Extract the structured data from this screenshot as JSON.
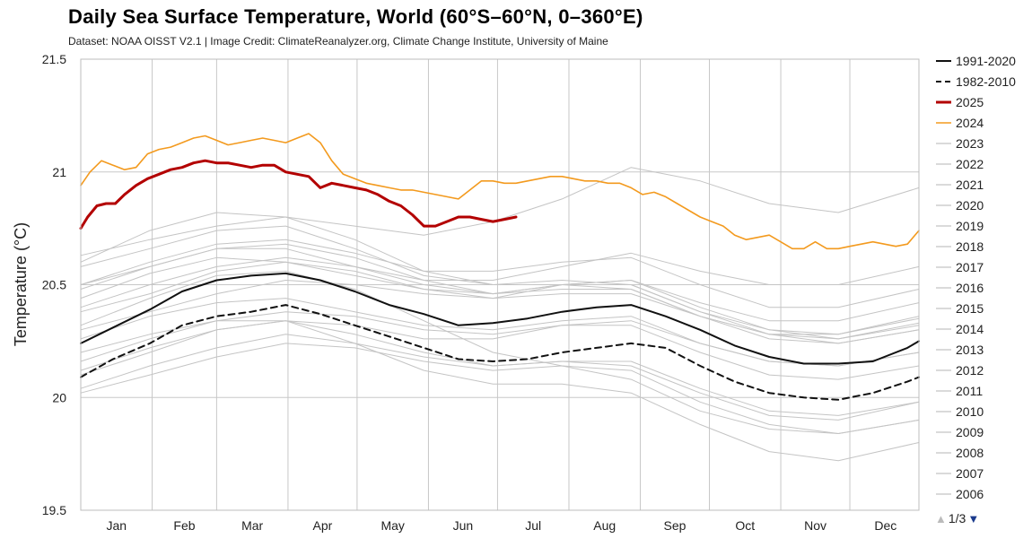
{
  "header": {
    "title": "Daily Sea Surface Temperature, World (60°S–60°N, 0–360°E)",
    "subtitle": "Dataset: NOAA OISST V2.1 | Image Credit: ClimateReanalyzer.org, Climate Change Institute, University of Maine"
  },
  "pager": {
    "text": "1/3",
    "up_icon": "triangle-up-icon",
    "down_icon": "triangle-down-icon"
  },
  "colors": {
    "y1991_2020": "#111111",
    "y1982_2010": "#111111",
    "y2025": "#b30000",
    "y2024": "#f39a1e",
    "past_years": "#c4c4c4",
    "grid": "#c8c8c8"
  },
  "chart_data": {
    "type": "line",
    "ylabel": "Temperature (°C)",
    "ylim": [
      19.5,
      21.5
    ],
    "yticks": [
      "21.5",
      "21",
      "20.5",
      "20",
      "19.5"
    ],
    "xlim": [
      1,
      365
    ],
    "x_unit": "day of year",
    "month_labels": [
      "Jan",
      "Feb",
      "Mar",
      "Apr",
      "May",
      "Jun",
      "Jul",
      "Aug",
      "Sep",
      "Oct",
      "Nov",
      "Dec"
    ],
    "grid": true,
    "legend_position": "right",
    "legend": [
      "1991-2020",
      "1982-2010",
      "2025",
      "2024",
      "2023",
      "2022",
      "2021",
      "2020",
      "2019",
      "2018",
      "2017",
      "2016",
      "2015",
      "2014",
      "2013",
      "2012",
      "2011",
      "2010",
      "2009",
      "2008",
      "2007",
      "2006"
    ],
    "series": [
      {
        "name": "1991-2020",
        "style": "solid",
        "color": "#111111",
        "x": [
          1,
          15,
          31,
          45,
          60,
          75,
          90,
          105,
          120,
          135,
          150,
          165,
          180,
          195,
          210,
          225,
          240,
          255,
          270,
          285,
          300,
          315,
          330,
          345,
          360,
          365
        ],
        "y": [
          20.24,
          20.31,
          20.39,
          20.47,
          20.52,
          20.54,
          20.55,
          20.52,
          20.47,
          20.41,
          20.37,
          20.32,
          20.33,
          20.35,
          20.38,
          20.4,
          20.41,
          20.36,
          20.3,
          20.23,
          20.18,
          20.15,
          20.15,
          20.16,
          20.22,
          20.25
        ]
      },
      {
        "name": "1982-2010",
        "style": "dashed",
        "color": "#111111",
        "x": [
          1,
          15,
          31,
          45,
          60,
          75,
          90,
          105,
          120,
          135,
          150,
          165,
          180,
          195,
          210,
          225,
          240,
          255,
          270,
          285,
          300,
          315,
          330,
          345,
          360,
          365
        ],
        "y": [
          20.09,
          20.17,
          20.24,
          20.32,
          20.36,
          20.38,
          20.41,
          20.37,
          20.32,
          20.27,
          20.22,
          20.17,
          20.16,
          20.17,
          20.2,
          20.22,
          20.24,
          20.22,
          20.14,
          20.07,
          20.02,
          20.0,
          19.99,
          20.02,
          20.07,
          20.09
        ]
      },
      {
        "name": "2025",
        "style": "solid",
        "color": "#b30000",
        "x": [
          1,
          4,
          8,
          12,
          16,
          20,
          25,
          30,
          35,
          40,
          45,
          50,
          55,
          60,
          65,
          70,
          75,
          80,
          85,
          90,
          95,
          100,
          105,
          110,
          115,
          120,
          125,
          130,
          135,
          140,
          145,
          150,
          155,
          160,
          165,
          170,
          175,
          180,
          185,
          190
        ],
        "y": [
          20.75,
          20.8,
          20.85,
          20.86,
          20.86,
          20.9,
          20.94,
          20.97,
          20.99,
          21.01,
          21.02,
          21.04,
          21.05,
          21.04,
          21.04,
          21.03,
          21.02,
          21.03,
          21.03,
          21.0,
          20.99,
          20.98,
          20.93,
          20.95,
          20.94,
          20.93,
          20.92,
          20.9,
          20.87,
          20.85,
          20.81,
          20.76,
          20.76,
          20.78,
          20.8,
          20.8,
          20.79,
          20.78,
          20.79,
          20.8
        ]
      },
      {
        "name": "2024",
        "style": "solid",
        "color": "#f39a1e",
        "x": [
          1,
          5,
          10,
          15,
          20,
          25,
          30,
          35,
          40,
          45,
          50,
          55,
          60,
          65,
          70,
          75,
          80,
          85,
          90,
          95,
          100,
          105,
          110,
          115,
          120,
          125,
          130,
          135,
          140,
          145,
          150,
          155,
          160,
          165,
          170,
          175,
          180,
          185,
          190,
          195,
          200,
          205,
          210,
          215,
          220,
          225,
          230,
          235,
          240,
          245,
          250,
          255,
          260,
          265,
          270,
          275,
          280,
          285,
          290,
          295,
          300,
          305,
          310,
          315,
          320,
          325,
          330,
          335,
          340,
          345,
          350,
          355,
          360,
          365
        ],
        "y": [
          20.94,
          21.0,
          21.05,
          21.03,
          21.01,
          21.02,
          21.08,
          21.1,
          21.11,
          21.13,
          21.15,
          21.16,
          21.14,
          21.12,
          21.13,
          21.14,
          21.15,
          21.14,
          21.13,
          21.15,
          21.17,
          21.13,
          21.05,
          20.99,
          20.97,
          20.95,
          20.94,
          20.93,
          20.92,
          20.92,
          20.91,
          20.9,
          20.89,
          20.88,
          20.92,
          20.96,
          20.96,
          20.95,
          20.95,
          20.96,
          20.97,
          20.98,
          20.98,
          20.97,
          20.96,
          20.96,
          20.95,
          20.95,
          20.93,
          20.9,
          20.91,
          20.89,
          20.86,
          20.83,
          20.8,
          20.78,
          20.76,
          20.72,
          20.7,
          20.71,
          20.72,
          20.69,
          20.66,
          20.66,
          20.69,
          20.66,
          20.66,
          20.67,
          20.68,
          20.69,
          20.68,
          20.67,
          20.68,
          20.74
        ]
      },
      {
        "name": "2023",
        "style": "solid",
        "color": "#c4c4c4",
        "x": [
          1,
          31,
          60,
          90,
          120,
          150,
          180,
          210,
          240,
          270,
          300,
          330,
          365
        ],
        "y": [
          20.63,
          20.7,
          20.76,
          20.8,
          20.76,
          20.72,
          20.78,
          20.88,
          21.02,
          20.96,
          20.86,
          20.82,
          20.93
        ]
      },
      {
        "name": "2022",
        "style": "solid",
        "color": "#c4c4c4",
        "x": [
          1,
          31,
          60,
          90,
          120,
          150,
          180,
          210,
          240,
          270,
          300,
          330,
          365
        ],
        "y": [
          20.5,
          20.58,
          20.66,
          20.66,
          20.58,
          20.5,
          20.46,
          20.5,
          20.52,
          20.4,
          20.3,
          20.28,
          20.35
        ]
      },
      {
        "name": "2021",
        "style": "solid",
        "color": "#c4c4c4",
        "x": [
          1,
          31,
          60,
          90,
          120,
          150,
          180,
          210,
          240,
          270,
          300,
          330,
          365
        ],
        "y": [
          20.44,
          20.55,
          20.62,
          20.6,
          20.54,
          20.48,
          20.46,
          20.5,
          20.5,
          20.38,
          20.28,
          20.26,
          20.32
        ]
      },
      {
        "name": "2020",
        "style": "solid",
        "color": "#c4c4c4",
        "x": [
          1,
          31,
          60,
          90,
          120,
          150,
          180,
          210,
          240,
          270,
          300,
          330,
          365
        ],
        "y": [
          20.58,
          20.66,
          20.74,
          20.76,
          20.66,
          20.54,
          20.5,
          20.52,
          20.5,
          20.38,
          20.3,
          20.26,
          20.33
        ]
      },
      {
        "name": "2019",
        "style": "solid",
        "color": "#c4c4c4",
        "x": [
          1,
          31,
          60,
          90,
          120,
          150,
          180,
          210,
          240,
          270,
          300,
          330,
          365
        ],
        "y": [
          20.5,
          20.6,
          20.68,
          20.7,
          20.64,
          20.56,
          20.56,
          20.6,
          20.62,
          20.5,
          20.4,
          20.4,
          20.48
        ]
      },
      {
        "name": "2018",
        "style": "solid",
        "color": "#c4c4c4",
        "x": [
          1,
          31,
          60,
          90,
          120,
          150,
          180,
          210,
          240,
          270,
          300,
          330,
          365
        ],
        "y": [
          20.38,
          20.46,
          20.56,
          20.6,
          20.56,
          20.48,
          20.44,
          20.46,
          20.46,
          20.36,
          20.28,
          20.28,
          20.36
        ]
      },
      {
        "name": "2017",
        "style": "solid",
        "color": "#c4c4c4",
        "x": [
          1,
          31,
          60,
          90,
          120,
          150,
          180,
          210,
          240,
          270,
          300,
          330,
          365
        ],
        "y": [
          20.48,
          20.58,
          20.66,
          20.68,
          20.62,
          20.52,
          20.46,
          20.48,
          20.48,
          20.36,
          20.26,
          20.24,
          20.3
        ]
      },
      {
        "name": "2016",
        "style": "solid",
        "color": "#c4c4c4",
        "x": [
          1,
          31,
          60,
          90,
          120,
          150,
          180,
          210,
          240,
          270,
          300,
          330,
          365
        ],
        "y": [
          20.6,
          20.74,
          20.82,
          20.8,
          20.7,
          20.56,
          20.5,
          20.5,
          20.48,
          20.36,
          20.28,
          20.24,
          20.3
        ]
      },
      {
        "name": "2015",
        "style": "solid",
        "color": "#c4c4c4",
        "x": [
          1,
          31,
          60,
          90,
          120,
          150,
          180,
          210,
          240,
          270,
          300,
          330,
          365
        ],
        "y": [
          20.4,
          20.5,
          20.58,
          20.62,
          20.58,
          20.52,
          20.52,
          20.58,
          20.64,
          20.56,
          20.5,
          20.5,
          20.58
        ]
      },
      {
        "name": "2014",
        "style": "solid",
        "color": "#c4c4c4",
        "x": [
          1,
          31,
          60,
          90,
          120,
          150,
          180,
          210,
          240,
          270,
          300,
          330,
          365
        ],
        "y": [
          20.3,
          20.38,
          20.46,
          20.52,
          20.5,
          20.46,
          20.44,
          20.5,
          20.52,
          20.42,
          20.34,
          20.34,
          20.42
        ]
      },
      {
        "name": "2013",
        "style": "solid",
        "color": "#c4c4c4",
        "x": [
          1,
          31,
          60,
          90,
          120,
          150,
          180,
          210,
          240,
          270,
          300,
          330,
          365
        ],
        "y": [
          20.26,
          20.36,
          20.42,
          20.44,
          20.38,
          20.32,
          20.3,
          20.34,
          20.36,
          20.24,
          20.16,
          20.14,
          20.2
        ]
      },
      {
        "name": "2012",
        "style": "solid",
        "color": "#c4c4c4",
        "x": [
          1,
          31,
          60,
          90,
          120,
          150,
          180,
          210,
          240,
          270,
          300,
          330,
          365
        ],
        "y": [
          20.16,
          20.26,
          20.34,
          20.38,
          20.36,
          20.3,
          20.28,
          20.32,
          20.32,
          20.2,
          20.1,
          20.08,
          20.14
        ]
      },
      {
        "name": "2011",
        "style": "solid",
        "color": "#c4c4c4",
        "x": [
          1,
          31,
          60,
          90,
          120,
          150,
          180,
          210,
          240,
          270,
          300,
          330,
          365
        ],
        "y": [
          20.12,
          20.22,
          20.3,
          20.34,
          20.28,
          20.2,
          20.14,
          20.16,
          20.16,
          20.04,
          19.94,
          19.92,
          19.98
        ]
      },
      {
        "name": "2010",
        "style": "solid",
        "color": "#c4c4c4",
        "x": [
          1,
          31,
          60,
          90,
          120,
          150,
          180,
          210,
          240,
          270,
          300,
          330,
          365
        ],
        "y": [
          20.32,
          20.44,
          20.54,
          20.56,
          20.48,
          20.34,
          20.2,
          20.14,
          20.08,
          19.94,
          19.86,
          19.84,
          19.9
        ]
      },
      {
        "name": "2009",
        "style": "solid",
        "color": "#c4c4c4",
        "x": [
          1,
          31,
          60,
          90,
          120,
          150,
          180,
          210,
          240,
          270,
          300,
          330,
          365
        ],
        "y": [
          20.1,
          20.2,
          20.3,
          20.34,
          20.32,
          20.26,
          20.26,
          20.32,
          20.34,
          20.24,
          20.16,
          20.14,
          20.2
        ]
      },
      {
        "name": "2008",
        "style": "solid",
        "color": "#c4c4c4",
        "x": [
          1,
          31,
          60,
          90,
          120,
          150,
          180,
          210,
          240,
          270,
          300,
          330,
          365
        ],
        "y": [
          20.02,
          20.1,
          20.18,
          20.24,
          20.22,
          20.16,
          20.12,
          20.14,
          20.12,
          19.98,
          19.88,
          19.84,
          19.9
        ]
      },
      {
        "name": "2007",
        "style": "solid",
        "color": "#c4c4c4",
        "x": [
          1,
          31,
          60,
          90,
          120,
          150,
          180,
          210,
          240,
          270,
          300,
          330,
          365
        ],
        "y": [
          20.2,
          20.28,
          20.34,
          20.34,
          20.24,
          20.12,
          20.06,
          20.06,
          20.02,
          19.88,
          19.76,
          19.72,
          19.8
        ]
      },
      {
        "name": "2006",
        "style": "solid",
        "color": "#c4c4c4",
        "x": [
          1,
          31,
          60,
          90,
          120,
          150,
          180,
          210,
          240,
          270,
          300,
          330,
          365
        ],
        "y": [
          20.04,
          20.14,
          20.22,
          20.28,
          20.24,
          20.18,
          20.14,
          20.16,
          20.14,
          20.02,
          19.92,
          19.9,
          19.98
        ]
      }
    ]
  }
}
